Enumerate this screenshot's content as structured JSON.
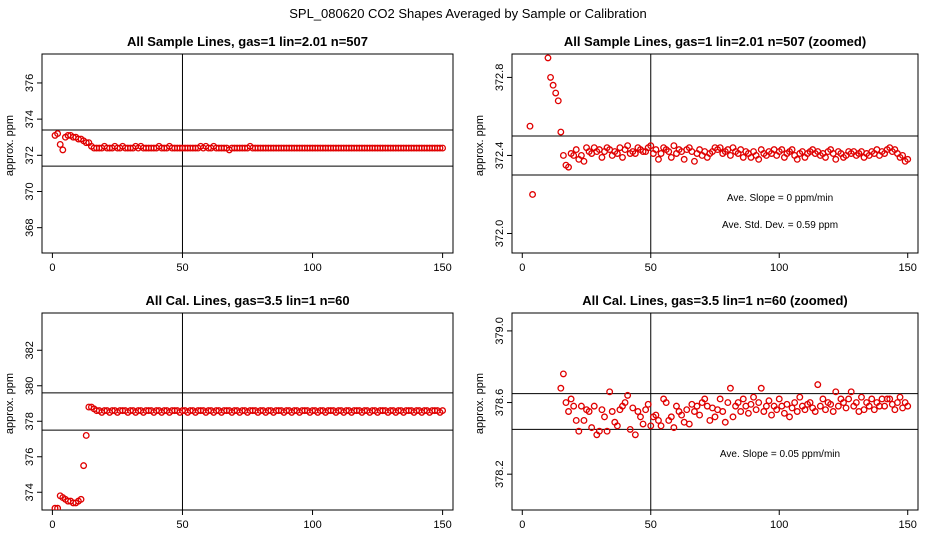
{
  "figure": {
    "title": "SPL_080620  CO2 Shapes Averaged by Sample or Calibration"
  },
  "colors": {
    "points": "#e00000",
    "axes": "#000000",
    "background": "#ffffff"
  },
  "chart_data": [
    {
      "type": "scatter",
      "title": "All Sample Lines, gas=1 lin=2.01 n=507",
      "xlabel": "",
      "ylabel": "approx. ppm",
      "xlim": [
        -4,
        154
      ],
      "ylim": [
        366.6,
        377.6
      ],
      "xticks": [
        0,
        50,
        100,
        150
      ],
      "yticks": [
        368,
        370,
        372,
        374,
        376
      ],
      "vline": 50,
      "hlines": [
        371.4,
        373.4
      ],
      "annotations": [],
      "series": [
        {
          "x_start": 1,
          "x_step": 1,
          "values": [
            373.1,
            373.2,
            372.6,
            372.3,
            373.0,
            373.1,
            373.1,
            373.0,
            373.0,
            372.9,
            372.9,
            372.8,
            372.7,
            372.7,
            372.5,
            372.4,
            372.4,
            372.4,
            372.4,
            372.5,
            372.4,
            372.4,
            372.4,
            372.5,
            372.4,
            372.4,
            372.5,
            372.4,
            372.4,
            372.4,
            372.4,
            372.5,
            372.4,
            372.5,
            372.4,
            372.4,
            372.4,
            372.4,
            372.4,
            372.4,
            372.5,
            372.4,
            372.4,
            372.4,
            372.5,
            372.4,
            372.4,
            372.4,
            372.4,
            372.4,
            372.4,
            372.4,
            372.4,
            372.4,
            372.4,
            372.4,
            372.5,
            372.4,
            372.5,
            372.4,
            372.4,
            372.5,
            372.4,
            372.4,
            372.4,
            372.4,
            372.4,
            372.3,
            372.4,
            372.4,
            372.4,
            372.4,
            372.4,
            372.4,
            372.4,
            372.5,
            372.4,
            372.4,
            372.4,
            372.4,
            372.4,
            372.4,
            372.4,
            372.4,
            372.4,
            372.4,
            372.4,
            372.4,
            372.4,
            372.4,
            372.4,
            372.4,
            372.4,
            372.4,
            372.4,
            372.4,
            372.4,
            372.4,
            372.4,
            372.4,
            372.4,
            372.4,
            372.4,
            372.4,
            372.4,
            372.4,
            372.4,
            372.4,
            372.4,
            372.4,
            372.4,
            372.4,
            372.4,
            372.4,
            372.4,
            372.4,
            372.4,
            372.4,
            372.4,
            372.4,
            372.4,
            372.4,
            372.4,
            372.4,
            372.4,
            372.4,
            372.4,
            372.4,
            372.4,
            372.4,
            372.4,
            372.4,
            372.4,
            372.4,
            372.4,
            372.4,
            372.4,
            372.4,
            372.4,
            372.4,
            372.4,
            372.4,
            372.4,
            372.4,
            372.4,
            372.4,
            372.4,
            372.4,
            372.4,
            372.4
          ]
        }
      ]
    },
    {
      "type": "scatter",
      "title": "All Sample Lines, gas=1 lin=2.01 n=507 (zoomed)",
      "xlabel": "",
      "ylabel": "approx. ppm",
      "xlim": [
        -4,
        154
      ],
      "ylim": [
        371.9,
        372.92
      ],
      "xticks": [
        0,
        50,
        100,
        150
      ],
      "yticks": [
        372.0,
        372.4,
        372.8
      ],
      "vline": 50,
      "hlines": [
        372.3,
        372.5
      ],
      "annotations": [
        "Ave. Slope =  0  ppm/min",
        "Ave. Std. Dev. =  0.59  ppm"
      ],
      "series": [
        {
          "x": [
            3,
            4,
            10,
            11,
            12,
            13,
            14,
            15,
            16,
            17,
            18,
            19,
            20,
            21,
            22,
            23,
            24,
            25,
            26,
            27,
            28,
            29,
            30,
            31,
            32,
            33,
            34,
            35,
            36,
            37,
            38,
            39,
            40,
            41,
            42,
            43,
            44,
            45,
            46,
            47,
            48,
            49,
            50,
            51,
            52,
            53,
            54,
            55,
            56,
            57,
            58,
            59,
            60,
            61,
            62,
            63,
            64,
            65,
            66,
            67,
            68,
            69,
            70,
            71,
            72,
            73,
            74,
            75,
            76,
            77,
            78,
            79,
            80,
            81,
            82,
            83,
            84,
            85,
            86,
            87,
            88,
            89,
            90,
            91,
            92,
            93,
            94,
            95,
            96,
            97,
            98,
            99,
            100,
            101,
            102,
            103,
            104,
            105,
            106,
            107,
            108,
            109,
            110,
            111,
            112,
            113,
            114,
            115,
            116,
            117,
            118,
            119,
            120,
            121,
            122,
            123,
            124,
            125,
            126,
            127,
            128,
            129,
            130,
            131,
            132,
            133,
            134,
            135,
            136,
            137,
            138,
            139,
            140,
            141,
            142,
            143,
            144,
            145,
            146,
            147,
            148,
            149,
            150
          ],
          "y": [
            372.55,
            372.2,
            372.9,
            372.8,
            372.76,
            372.72,
            372.68,
            372.52,
            372.4,
            372.35,
            372.34,
            372.41,
            372.4,
            372.43,
            372.38,
            372.4,
            372.37,
            372.44,
            372.42,
            372.41,
            372.44,
            372.42,
            372.43,
            372.39,
            372.42,
            372.44,
            372.43,
            372.4,
            372.42,
            372.41,
            372.44,
            372.39,
            372.43,
            372.45,
            372.41,
            372.42,
            372.41,
            372.44,
            372.43,
            372.42,
            372.42,
            372.44,
            372.45,
            372.41,
            372.43,
            372.38,
            372.41,
            372.44,
            372.43,
            372.42,
            372.39,
            372.45,
            372.41,
            372.43,
            372.42,
            372.38,
            372.43,
            372.44,
            372.42,
            372.37,
            372.41,
            372.43,
            372.4,
            372.42,
            372.39,
            372.41,
            372.42,
            372.44,
            372.43,
            372.44,
            372.41,
            372.42,
            372.43,
            372.4,
            372.44,
            372.42,
            372.41,
            372.43,
            372.39,
            372.42,
            372.41,
            372.39,
            372.42,
            372.4,
            372.38,
            372.43,
            372.41,
            372.4,
            372.42,
            372.41,
            372.43,
            372.4,
            372.42,
            372.43,
            372.39,
            372.41,
            372.42,
            372.43,
            372.4,
            372.38,
            372.41,
            372.42,
            372.39,
            372.41,
            372.42,
            372.43,
            372.41,
            372.42,
            372.4,
            372.41,
            372.39,
            372.42,
            372.43,
            372.41,
            372.38,
            372.42,
            372.41,
            372.39,
            372.4,
            372.42,
            372.41,
            372.42,
            372.4,
            372.41,
            372.42,
            372.39,
            372.41,
            372.4,
            372.42,
            372.41,
            372.43,
            372.4,
            372.42,
            372.41,
            372.43,
            372.44,
            372.42,
            372.43,
            372.41,
            372.39,
            372.4,
            372.37,
            372.38
          ]
        }
      ]
    },
    {
      "type": "scatter",
      "title": "All Cal. Lines, gas=3.5 lin=1 n=60",
      "xlabel": "",
      "ylabel": "approx. ppm",
      "xlim": [
        -4,
        154
      ],
      "ylim": [
        373,
        384.1
      ],
      "xticks": [
        0,
        50,
        100,
        150
      ],
      "yticks": [
        374,
        376,
        378,
        380,
        382
      ],
      "vline": 50,
      "hlines": [
        377.5,
        379.6
      ],
      "annotations": [],
      "series": [
        {
          "x_start": 1,
          "x_step": 1,
          "values": [
            373.1,
            373.1,
            373.8,
            373.7,
            373.6,
            373.5,
            373.5,
            373.4,
            373.4,
            373.5,
            373.6,
            375.5,
            377.2,
            378.8,
            378.8,
            378.7,
            378.6,
            378.6,
            378.5,
            378.6,
            378.6,
            378.5,
            378.6,
            378.6,
            378.5,
            378.6,
            378.6,
            378.6,
            378.5,
            378.6,
            378.6,
            378.5,
            378.6,
            378.6,
            378.5,
            378.6,
            378.6,
            378.6,
            378.5,
            378.6,
            378.6,
            378.5,
            378.6,
            378.6,
            378.5,
            378.6,
            378.6,
            378.6,
            378.5,
            378.6,
            378.6,
            378.5,
            378.6,
            378.6,
            378.5,
            378.6,
            378.6,
            378.6,
            378.5,
            378.6,
            378.6,
            378.5,
            378.6,
            378.6,
            378.5,
            378.6,
            378.6,
            378.6,
            378.5,
            378.6,
            378.6,
            378.5,
            378.6,
            378.6,
            378.5,
            378.6,
            378.6,
            378.6,
            378.5,
            378.6,
            378.6,
            378.5,
            378.6,
            378.6,
            378.5,
            378.6,
            378.6,
            378.6,
            378.5,
            378.6,
            378.6,
            378.5,
            378.6,
            378.6,
            378.5,
            378.6,
            378.6,
            378.6,
            378.5,
            378.6,
            378.6,
            378.5,
            378.6,
            378.6,
            378.5,
            378.6,
            378.6,
            378.6,
            378.5,
            378.6,
            378.6,
            378.5,
            378.6,
            378.6,
            378.5,
            378.6,
            378.6,
            378.6,
            378.5,
            378.6,
            378.6,
            378.5,
            378.6,
            378.6,
            378.5,
            378.6,
            378.6,
            378.6,
            378.5,
            378.6,
            378.6,
            378.5,
            378.6,
            378.6,
            378.5,
            378.6,
            378.6,
            378.6,
            378.5,
            378.6,
            378.6,
            378.5,
            378.6,
            378.6,
            378.5,
            378.6,
            378.6,
            378.6,
            378.5,
            378.6
          ]
        }
      ]
    },
    {
      "type": "scatter",
      "title": "All Cal. Lines, gas=3.5 lin=1 n=60 (zoomed)",
      "xlabel": "",
      "ylabel": "approx. ppm",
      "xlim": [
        -4,
        154
      ],
      "ylim": [
        378.0,
        379.1
      ],
      "xticks": [
        0,
        50,
        100,
        150
      ],
      "yticks": [
        378.2,
        378.6,
        379.0
      ],
      "vline": 50,
      "hlines": [
        378.45,
        378.65
      ],
      "annotations": [
        "Ave. Slope =  0.05  ppm/min"
      ],
      "series": [
        {
          "x": [
            15,
            16,
            17,
            18,
            19,
            20,
            21,
            22,
            23,
            24,
            25,
            26,
            27,
            28,
            29,
            30,
            31,
            32,
            33,
            34,
            35,
            36,
            37,
            38,
            39,
            40,
            41,
            42,
            43,
            44,
            45,
            46,
            47,
            48,
            49,
            50,
            51,
            52,
            53,
            54,
            55,
            56,
            57,
            58,
            59,
            60,
            61,
            62,
            63,
            64,
            65,
            66,
            67,
            68,
            69,
            70,
            71,
            72,
            73,
            74,
            75,
            76,
            77,
            78,
            79,
            80,
            81,
            82,
            83,
            84,
            85,
            86,
            87,
            88,
            89,
            90,
            91,
            92,
            93,
            94,
            95,
            96,
            97,
            98,
            99,
            100,
            101,
            102,
            103,
            104,
            105,
            106,
            107,
            108,
            109,
            110,
            111,
            112,
            113,
            114,
            115,
            116,
            117,
            118,
            119,
            120,
            121,
            122,
            123,
            124,
            125,
            126,
            127,
            128,
            129,
            130,
            131,
            132,
            133,
            134,
            135,
            136,
            137,
            138,
            139,
            140,
            141,
            142,
            143,
            144,
            145,
            146,
            147,
            148,
            149,
            150
          ],
          "y": [
            378.68,
            378.76,
            378.6,
            378.55,
            378.62,
            378.58,
            378.5,
            378.44,
            378.58,
            378.5,
            378.56,
            378.55,
            378.46,
            378.58,
            378.42,
            378.44,
            378.56,
            378.52,
            378.44,
            378.66,
            378.55,
            378.49,
            378.47,
            378.56,
            378.58,
            378.6,
            378.64,
            378.45,
            378.57,
            378.42,
            378.55,
            378.52,
            378.48,
            378.56,
            378.59,
            378.47,
            378.52,
            378.53,
            378.5,
            378.47,
            378.62,
            378.6,
            378.5,
            378.52,
            378.46,
            378.58,
            378.55,
            378.53,
            378.49,
            378.56,
            378.48,
            378.59,
            378.55,
            378.58,
            378.53,
            378.6,
            378.62,
            378.58,
            378.5,
            378.57,
            378.52,
            378.56,
            378.62,
            378.55,
            378.49,
            378.6,
            378.68,
            378.52,
            378.58,
            378.6,
            378.55,
            378.62,
            378.58,
            378.54,
            378.59,
            378.63,
            378.56,
            378.6,
            378.68,
            378.55,
            378.58,
            378.61,
            378.53,
            378.58,
            378.56,
            378.62,
            378.58,
            378.54,
            378.59,
            378.52,
            378.57,
            378.6,
            378.55,
            378.63,
            378.58,
            378.56,
            378.59,
            378.6,
            378.57,
            378.55,
            378.7,
            378.58,
            378.62,
            378.56,
            378.6,
            378.59,
            378.55,
            378.66,
            378.58,
            378.62,
            378.6,
            378.57,
            378.62,
            378.66,
            378.58,
            378.6,
            378.55,
            378.63,
            378.56,
            378.6,
            378.58,
            378.62,
            378.56,
            378.6,
            378.58,
            378.62,
            378.58,
            378.62,
            378.62,
            378.59,
            378.56,
            378.6,
            378.63,
            378.57,
            378.6,
            378.58
          ]
        }
      ]
    }
  ]
}
